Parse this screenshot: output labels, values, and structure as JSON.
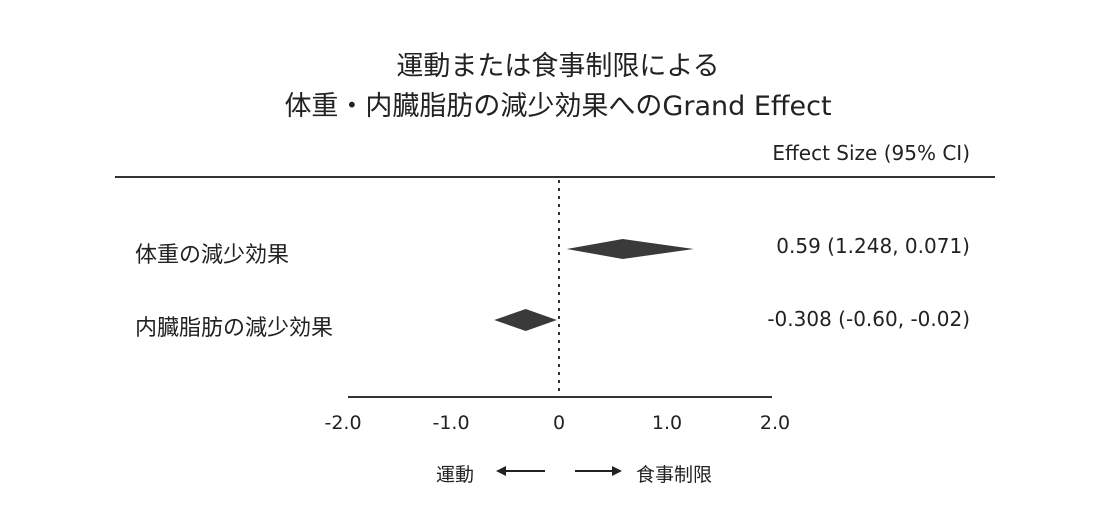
{
  "title_line1": "運動または食事制限による",
  "title_line2": "体重・内臓脂肪の減少効果へのGrand Effect",
  "column_header": "Effect Size (95% CI)",
  "direction": {
    "left": "運動",
    "right": "食事制限"
  },
  "colors": {
    "marker": "#3a3a3a",
    "axis": "#333333",
    "text": "#222222"
  },
  "chart_data": {
    "type": "forest",
    "title": "運動または食事制限による 体重・内臓脂肪の減少効果へのGrand Effect",
    "xlim": [
      -2.0,
      2.0
    ],
    "ticks": [
      -2.0,
      -1.0,
      0,
      1.0,
      2.0
    ],
    "tick_labels": [
      "-2.0",
      "-1.0",
      "0",
      "1.0",
      "2.0"
    ],
    "reference_line": 0,
    "rows": [
      {
        "label": "体重の減少効果",
        "estimate": 0.59,
        "ci_low": 0.071,
        "ci_high": 1.248,
        "text": "0.59 (1.248, 0.071)"
      },
      {
        "label": "内臓脂肪の減少効果",
        "estimate": -0.308,
        "ci_low": -0.6,
        "ci_high": -0.02,
        "text": "-0.308 (-0.60, -0.02)"
      }
    ]
  }
}
